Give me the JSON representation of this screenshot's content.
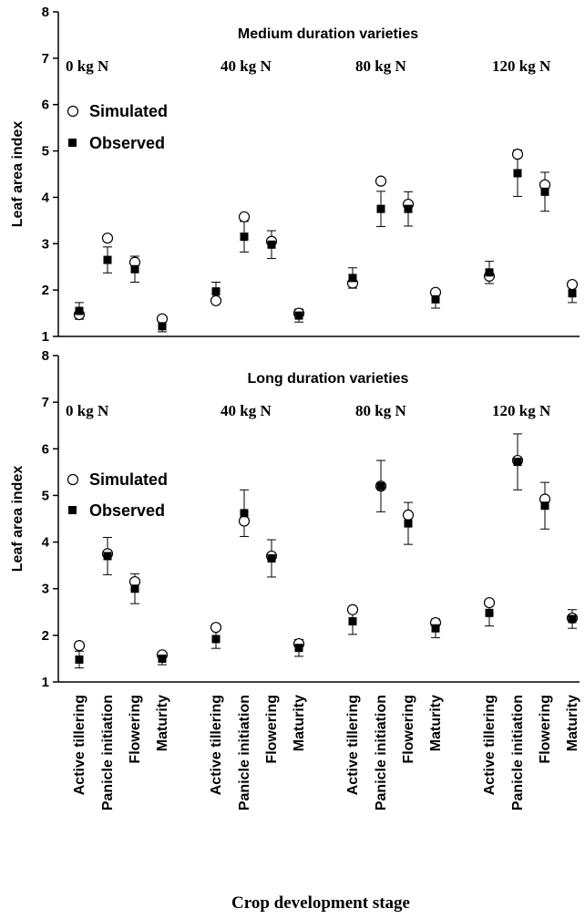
{
  "figure": {
    "xlabel": "Crop development stage"
  },
  "chart_data": [
    {
      "type": "scatter",
      "subtitle": "Medium duration varieties",
      "ylabel": "Leaf area index",
      "ylim": [
        1,
        8
      ],
      "yticks": [
        "1",
        "2",
        "3",
        "4",
        "5",
        "6",
        "7",
        "8"
      ],
      "groups": [
        "0 kg N",
        "40 kg N",
        "80 kg N",
        "120 kg N"
      ],
      "stages": [
        "Active tillering",
        "Panicle initiation",
        "Flowering",
        "Maturity"
      ],
      "legend": {
        "position": "upper-left",
        "simulated": "Simulated",
        "observed": "Observed"
      },
      "series": [
        {
          "name": "Simulated",
          "marker": "open-circle",
          "values": [
            1.47,
            3.12,
            2.6,
            1.38,
            1.77,
            3.58,
            3.05,
            1.5,
            2.15,
            4.35,
            3.85,
            1.95,
            2.3,
            4.93,
            4.27,
            2.12
          ]
        },
        {
          "name": "Observed",
          "marker": "filled-square",
          "values": [
            1.55,
            2.65,
            2.45,
            1.22,
            1.97,
            3.15,
            2.98,
            1.45,
            2.26,
            3.75,
            3.75,
            1.8,
            2.38,
            4.52,
            4.12,
            1.93
          ],
          "error": [
            0.18,
            0.28,
            0.28,
            0.12,
            0.2,
            0.33,
            0.3,
            0.14,
            0.22,
            0.38,
            0.37,
            0.19,
            0.24,
            0.5,
            0.42,
            0.2
          ]
        }
      ]
    },
    {
      "type": "scatter",
      "subtitle": "Long duration varieties",
      "ylabel": "Leaf area index",
      "ylim": [
        1,
        8
      ],
      "yticks": [
        "1",
        "2",
        "3",
        "4",
        "5",
        "6",
        "7",
        "8"
      ],
      "groups": [
        "0 kg N",
        "40 kg N",
        "80 kg N",
        "120 kg N"
      ],
      "stages": [
        "Active tillering",
        "Panicle initiation",
        "Flowering",
        "Maturity"
      ],
      "legend": {
        "position": "upper-left",
        "simulated": "Simulated",
        "observed": "Observed"
      },
      "series": [
        {
          "name": "Simulated",
          "marker": "open-circle",
          "values": [
            1.78,
            3.75,
            3.15,
            1.58,
            2.17,
            4.45,
            3.7,
            1.82,
            2.55,
            5.2,
            4.58,
            2.27,
            2.7,
            5.75,
            4.92,
            2.37
          ]
        },
        {
          "name": "Observed",
          "marker": "filled-square",
          "values": [
            1.48,
            3.7,
            3.0,
            1.5,
            1.92,
            4.62,
            3.65,
            1.73,
            2.3,
            5.2,
            4.4,
            2.15,
            2.48,
            5.72,
            4.78,
            2.35
          ],
          "error": [
            0.18,
            0.4,
            0.32,
            0.13,
            0.2,
            0.5,
            0.4,
            0.18,
            0.28,
            0.55,
            0.45,
            0.2,
            0.28,
            0.6,
            0.5,
            0.2
          ]
        }
      ]
    }
  ]
}
